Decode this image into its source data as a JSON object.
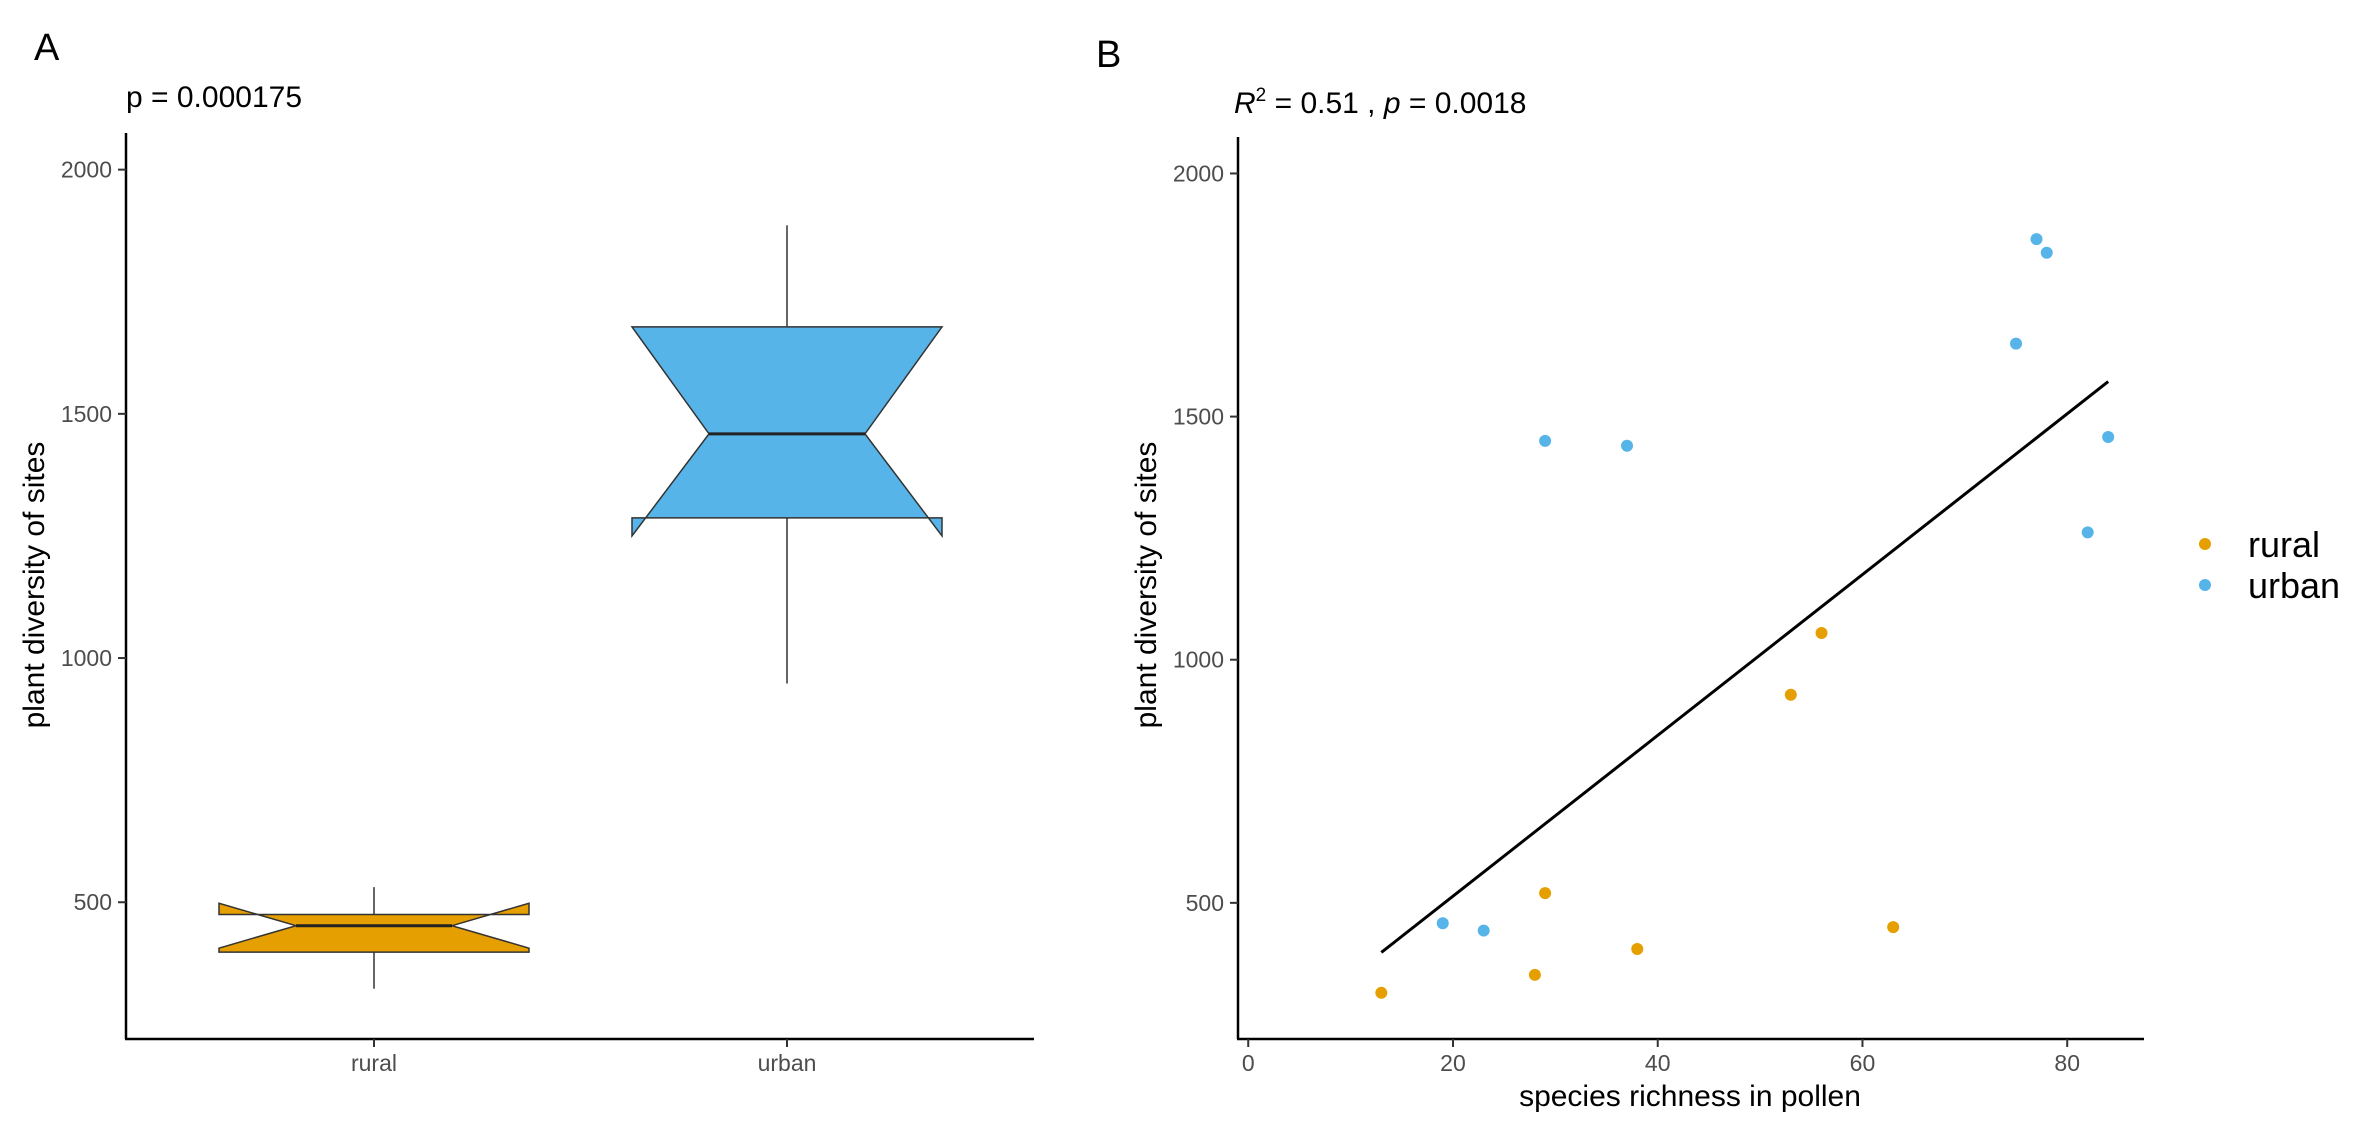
{
  "panel_a": {
    "label": "A",
    "annotation": "p = 0.000175"
  },
  "panel_b": {
    "label": "B",
    "annotation_parts": [
      "R",
      "2",
      " = 0.51 , ",
      "p",
      " = 0.0018"
    ]
  },
  "legend": {
    "items": [
      {
        "label": "rural",
        "color": "#E69F00"
      },
      {
        "label": "urban",
        "color": "#56B4E9"
      }
    ]
  },
  "chart_data": [
    {
      "type": "box",
      "notched": true,
      "title": "p = 0.000175",
      "xlabel": "",
      "ylabel": "plant diversity of sites",
      "ylim": [
        220,
        2075
      ],
      "yticks": [
        500,
        1000,
        1500,
        2000
      ],
      "categories": [
        "rural",
        "urban"
      ],
      "boxes": [
        {
          "category": "rural",
          "color": "#E69F00",
          "whisker_low": 323,
          "q1": 398,
          "notch_low": 406,
          "median": 452,
          "notch_high": 498,
          "q3": 475,
          "whisker_high": 531
        },
        {
          "category": "urban",
          "color": "#56B4E9",
          "whisker_low": 948,
          "q1": 1287,
          "notch_low": 1250,
          "median": 1459,
          "notch_high": 1678,
          "q3": 1678,
          "whisker_high": 1886
        }
      ]
    },
    {
      "type": "scatter",
      "title": "R^2 = 0.51 , p = 0.0018",
      "xlabel": "species richness in pollen",
      "ylabel": "plant diversity of sites",
      "xlim": [
        -1,
        87.5
      ],
      "ylim": [
        220,
        2075
      ],
      "xticks": [
        0,
        20,
        40,
        60,
        80
      ],
      "yticks": [
        500,
        1000,
        1500,
        2000
      ],
      "series": [
        {
          "name": "rural",
          "color": "#E69F00",
          "points": [
            [
              13,
              315
            ],
            [
              28,
              352
            ],
            [
              29,
              520
            ],
            [
              38,
              405
            ],
            [
              53,
              928
            ],
            [
              56,
              1055
            ],
            [
              63,
              450
            ]
          ]
        },
        {
          "name": "urban",
          "color": "#56B4E9",
          "points": [
            [
              19,
              458
            ],
            [
              23,
              443
            ],
            [
              29,
              1450
            ],
            [
              37,
              1440
            ],
            [
              75,
              1650
            ],
            [
              77,
              1865
            ],
            [
              78,
              1837
            ],
            [
              82,
              1262
            ],
            [
              84,
              1458
            ]
          ]
        }
      ],
      "fit_line": {
        "x": [
          13,
          84
        ],
        "y": [
          398,
          1572
        ]
      }
    }
  ]
}
